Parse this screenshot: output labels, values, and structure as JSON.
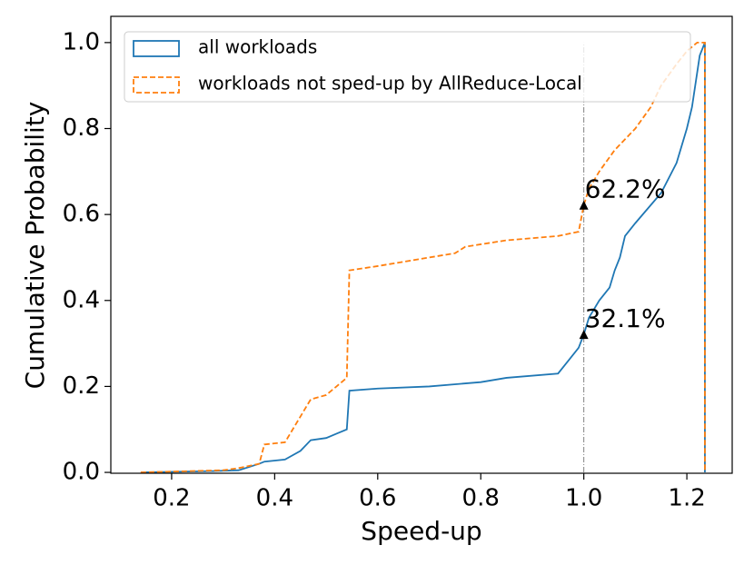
{
  "chart_data": {
    "type": "line",
    "x_label": "Speed-up",
    "y_label": "Cumulative Probability",
    "xlim": [
      0.082,
      1.288
    ],
    "ylim": [
      -0.002,
      1.061
    ],
    "xticks": [
      0.2,
      0.4,
      0.6,
      0.8,
      {
        "value": 1,
        "label": "1.0"
      },
      1.2
    ],
    "yticks": [
      {
        "value": 0,
        "label": "0.0"
      },
      0.2,
      0.4,
      0.6,
      0.8,
      {
        "value": 1,
        "label": "1.0"
      }
    ],
    "legend_position": "upper left",
    "vline": {
      "x": 1.0,
      "color": "#808080"
    },
    "annotations": [
      {
        "x": 1.0,
        "y": 0.622,
        "text": "62.2%"
      },
      {
        "x": 1.0,
        "y": 0.321,
        "text": "32.1%"
      }
    ],
    "series": [
      {
        "name": "all workloads",
        "color": "#1f77b4",
        "dash": "solid",
        "x": [
          0.14,
          0.28,
          0.33,
          0.37,
          0.38,
          0.42,
          0.45,
          0.47,
          0.5,
          0.52,
          0.54,
          0.545,
          0.6,
          0.7,
          0.8,
          0.85,
          0.95,
          0.97,
          0.99,
          1.0,
          1.01,
          1.03,
          1.05,
          1.06,
          1.07,
          1.08,
          1.1,
          1.15,
          1.18,
          1.2,
          1.21,
          1.22,
          1.225,
          1.235,
          1.235
        ],
        "y": [
          0,
          0.003,
          0.005,
          0.02,
          0.025,
          0.03,
          0.05,
          0.075,
          0.08,
          0.09,
          0.1,
          0.19,
          0.195,
          0.2,
          0.21,
          0.22,
          0.23,
          0.26,
          0.29,
          0.321,
          0.36,
          0.4,
          0.43,
          0.47,
          0.5,
          0.55,
          0.58,
          0.65,
          0.72,
          0.8,
          0.85,
          0.93,
          0.97,
          1.0,
          0
        ]
      },
      {
        "name": "workloads not sped-up by AllReduce-Local",
        "color": "#ff7f0e",
        "dash": "dashed",
        "x": [
          0.14,
          0.3,
          0.33,
          0.37,
          0.38,
          0.42,
          0.45,
          0.47,
          0.5,
          0.52,
          0.54,
          0.545,
          0.6,
          0.65,
          0.7,
          0.75,
          0.77,
          0.85,
          0.95,
          0.99,
          1.0,
          1.01,
          1.03,
          1.06,
          1.1,
          1.13,
          1.15,
          1.18,
          1.2,
          1.22,
          1.235,
          1.235
        ],
        "y": [
          0,
          0.005,
          0.01,
          0.02,
          0.065,
          0.07,
          0.13,
          0.17,
          0.18,
          0.2,
          0.22,
          0.47,
          0.48,
          0.49,
          0.5,
          0.51,
          0.525,
          0.54,
          0.55,
          0.56,
          0.622,
          0.66,
          0.7,
          0.75,
          0.8,
          0.85,
          0.9,
          0.95,
          0.98,
          1.0,
          1.0,
          0
        ]
      }
    ]
  }
}
